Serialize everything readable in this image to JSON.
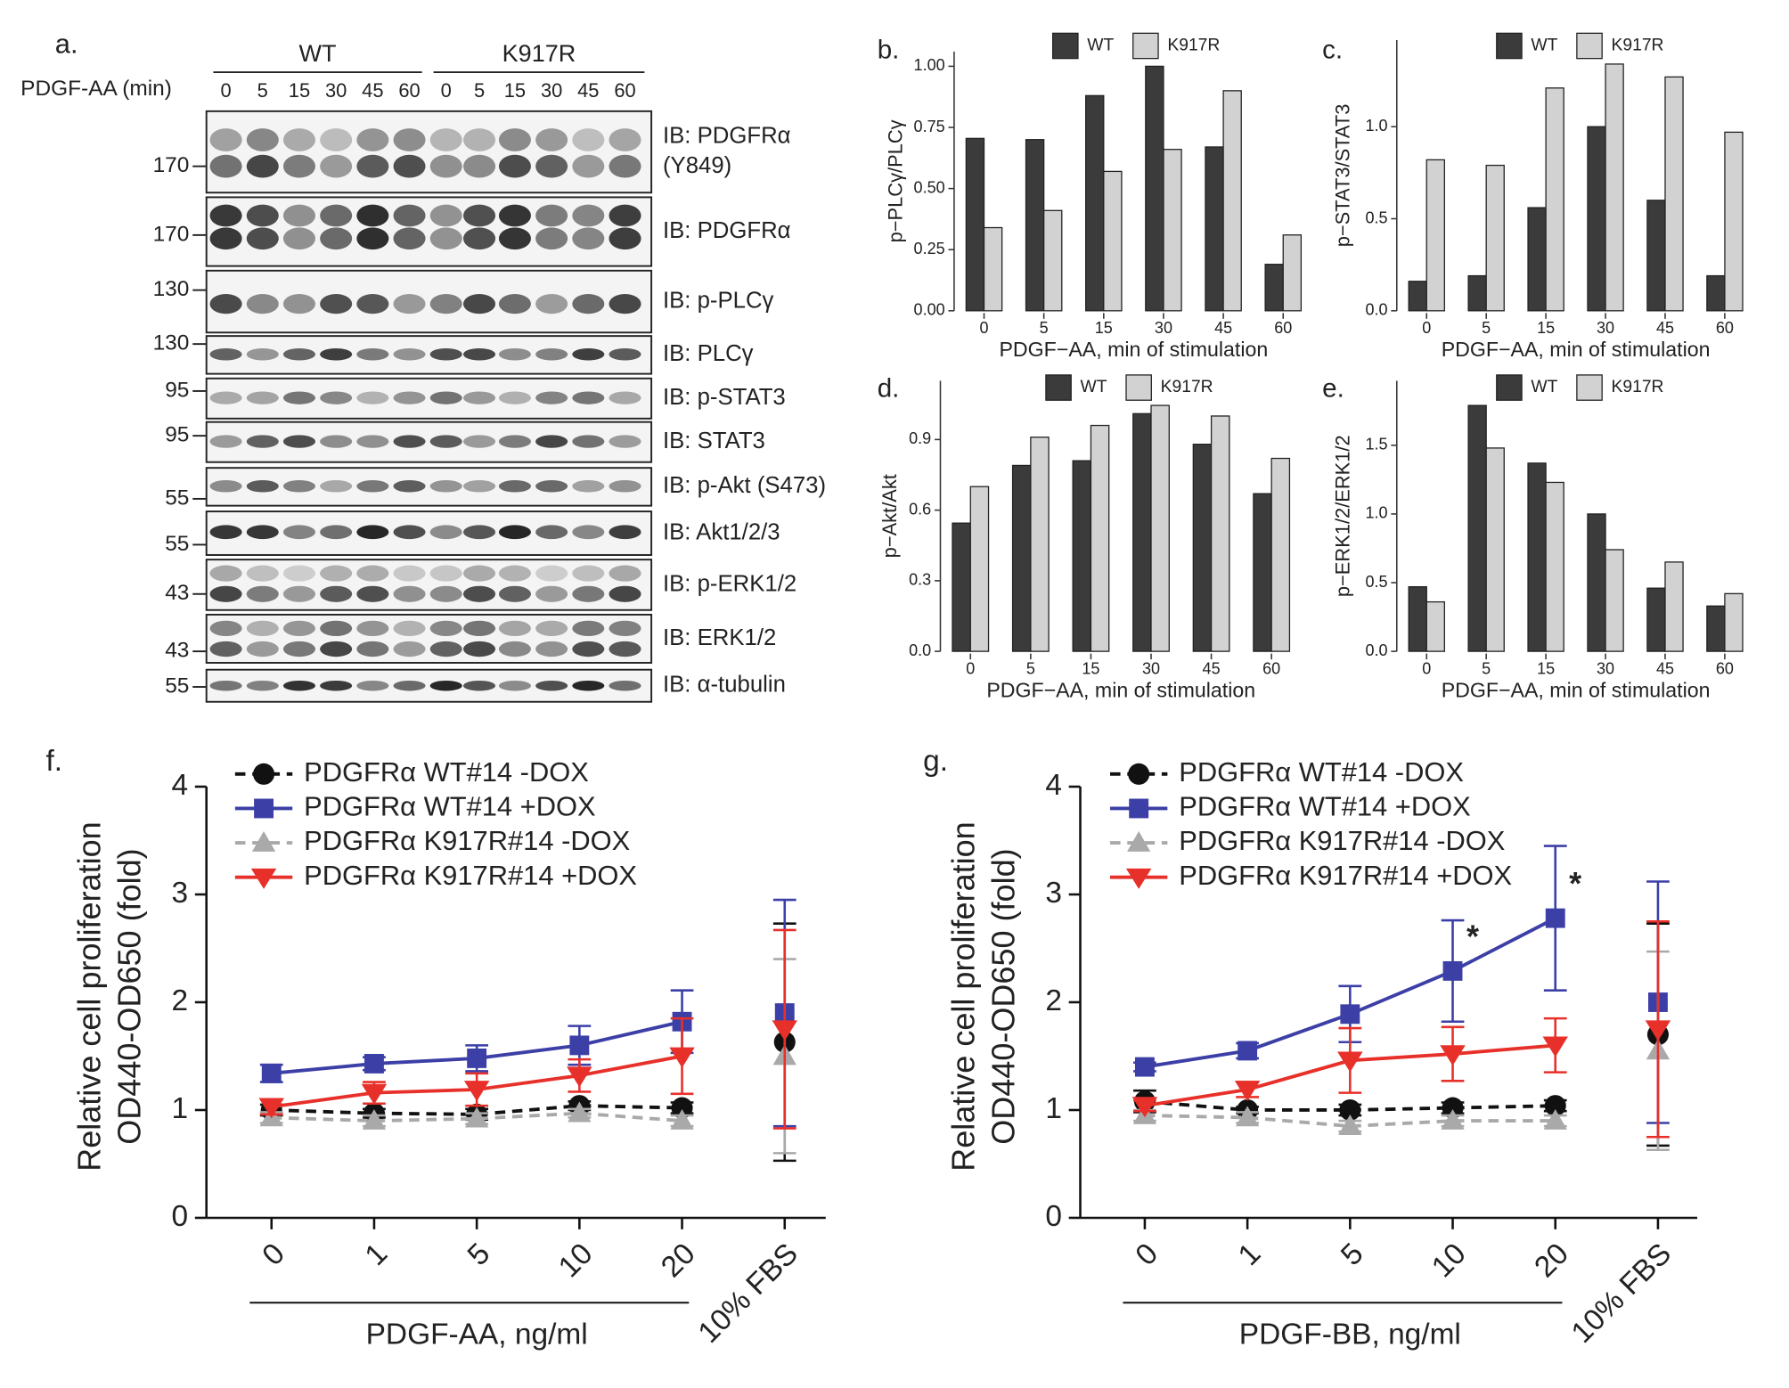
{
  "blot": {
    "panel_label": "a.",
    "treatment_label": "PDGF-AA (min)",
    "groups": [
      {
        "name": "WT",
        "lanes": [
          "0",
          "5",
          "15",
          "30",
          "45",
          "60"
        ]
      },
      {
        "name": "K917R",
        "lanes": [
          "0",
          "5",
          "15",
          "30",
          "45",
          "60"
        ]
      }
    ],
    "rows": [
      {
        "mw": "170",
        "label": [
          "IB: PDGFRα",
          "(Y849)"
        ]
      },
      {
        "mw": "170",
        "label": [
          "IB: PDGFRα"
        ]
      },
      {
        "mw": "130",
        "label": [
          "IB: p-PLCγ"
        ]
      },
      {
        "mw": "130",
        "label": [
          "IB: PLCγ"
        ]
      },
      {
        "mw": "95",
        "label": [
          "IB: p-STAT3"
        ]
      },
      {
        "mw": "95",
        "label": [
          "IB: STAT3"
        ]
      },
      {
        "mw": "55",
        "label": [
          "IB: p-Akt (S473)"
        ]
      },
      {
        "mw": "55",
        "label": [
          "IB: Akt1/2/3"
        ]
      },
      {
        "mw": "43",
        "label": [
          "IB: p-ERK1/2"
        ]
      },
      {
        "mw": "43",
        "label": [
          "IB: ERK1/2"
        ]
      },
      {
        "mw": "55",
        "label": [
          "IB: α-tubulin"
        ]
      }
    ]
  },
  "chart_data": [
    {
      "type": "bar",
      "panel_label": "b.",
      "ylabel": "p−PLCγ/PLCγ",
      "xlabel": "PDGF−AA, min of stimulation",
      "categories": [
        "0",
        "5",
        "15",
        "30",
        "45",
        "60"
      ],
      "series": [
        {
          "name": "WT",
          "color": "#3b3b3b",
          "values": [
            0.705,
            0.7,
            0.88,
            1.0,
            0.67,
            0.19
          ]
        },
        {
          "name": "K917R",
          "color": "#d2d2d2",
          "values": [
            0.34,
            0.41,
            0.57,
            0.66,
            0.9,
            0.31
          ]
        }
      ],
      "ylim": [
        0,
        1.06
      ],
      "yticks": [
        {
          "value": 0,
          "label": "0.00"
        },
        {
          "value": 0.25,
          "label": "0.25"
        },
        {
          "value": 0.5,
          "label": "0.50"
        },
        {
          "value": 0.75,
          "label": "0.75"
        },
        {
          "value": 1,
          "label": "1.00"
        }
      ]
    },
    {
      "type": "bar",
      "panel_label": "c.",
      "ylabel": "p−STAT3/STAT3",
      "xlabel": "PDGF−AA, min of stimulation",
      "categories": [
        "0",
        "5",
        "15",
        "30",
        "45",
        "60"
      ],
      "series": [
        {
          "name": "WT",
          "color": "#3b3b3b",
          "values": [
            0.16,
            0.19,
            0.56,
            1.0,
            0.6,
            0.19
          ]
        },
        {
          "name": "K917R",
          "color": "#d2d2d2",
          "values": [
            0.82,
            0.79,
            1.21,
            1.34,
            1.27,
            0.97
          ]
        }
      ],
      "ylim": [
        0,
        1.47
      ],
      "yticks": [
        {
          "value": 0,
          "label": "0.0"
        },
        {
          "value": 0.5,
          "label": "0.5"
        },
        {
          "value": 1,
          "label": "1.0"
        }
      ]
    },
    {
      "type": "bar",
      "panel_label": "d.",
      "ylabel": "p−Akt/Akt",
      "xlabel": "PDGF−AA, min of stimulation",
      "categories": [
        "0",
        "5",
        "15",
        "30",
        "45",
        "60"
      ],
      "series": [
        {
          "name": "WT",
          "color": "#3b3b3b",
          "values": [
            0.545,
            0.79,
            0.81,
            1.01,
            0.88,
            0.67
          ]
        },
        {
          "name": "K917R",
          "color": "#d2d2d2",
          "values": [
            0.7,
            0.91,
            0.96,
            1.045,
            1.0,
            0.82
          ]
        }
      ],
      "ylim": [
        0,
        1.15
      ],
      "yticks": [
        {
          "value": 0,
          "label": "0.0"
        },
        {
          "value": 0.3,
          "label": "0.3"
        },
        {
          "value": 0.6,
          "label": "0.6"
        },
        {
          "value": 0.9,
          "label": "0.9"
        }
      ]
    },
    {
      "type": "bar",
      "panel_label": "e.",
      "ylabel": "p−ERK1/2/ERK1/2",
      "xlabel": "PDGF−AA, min of stimulation",
      "categories": [
        "0",
        "5",
        "15",
        "30",
        "45",
        "60"
      ],
      "series": [
        {
          "name": "WT",
          "color": "#3b3b3b",
          "values": [
            0.47,
            1.79,
            1.37,
            1.0,
            0.46,
            0.33
          ]
        },
        {
          "name": "K917R",
          "color": "#d2d2d2",
          "values": [
            0.36,
            1.48,
            1.23,
            0.74,
            0.65,
            0.42
          ]
        }
      ],
      "ylim": [
        0,
        1.97
      ],
      "yticks": [
        {
          "value": 0,
          "label": "0.0"
        },
        {
          "value": 0.5,
          "label": "0.5"
        },
        {
          "value": 1,
          "label": "1.0"
        },
        {
          "value": 1.5,
          "label": "1.5"
        }
      ]
    },
    {
      "type": "line",
      "panel_label": "f.",
      "ylabel": [
        "Relative cell proliferation",
        "OD440-OD650 (fold)"
      ],
      "xlabel": "PDGF-AA, ng/ml",
      "categories": [
        "0",
        "1",
        "5",
        "10",
        "20"
      ],
      "fbs_label": "10% FBS",
      "series": [
        {
          "name": "PDGFRα WT#14 -DOX",
          "color": "#111111",
          "marker": "circle",
          "dashed": true,
          "values": [
            1.0,
            0.97,
            0.96,
            1.04,
            1.02
          ],
          "errors": [
            0.05,
            0.04,
            0.05,
            0.04,
            0.05
          ],
          "fbs": {
            "value": 1.63,
            "error": 1.1
          }
        },
        {
          "name": "PDGFRα WT#14 +DOX",
          "color": "#3b3fa6",
          "marker": "square",
          "dashed": false,
          "values": [
            1.34,
            1.43,
            1.48,
            1.6,
            1.82
          ],
          "errors": [
            0.08,
            0.06,
            0.12,
            0.18,
            0.29
          ],
          "fbs": {
            "value": 1.9,
            "error": 1.05
          }
        },
        {
          "name": "PDGFRα K917R#14 -DOX",
          "color": "#a9a9a9",
          "marker": "triangle-up",
          "dashed": true,
          "values": [
            0.93,
            0.9,
            0.92,
            0.97,
            0.9
          ],
          "errors": [
            0.05,
            0.05,
            0.05,
            0.04,
            0.05
          ],
          "fbs": {
            "value": 1.5,
            "error": 0.9
          }
        },
        {
          "name": "PDGFRα K917R#14 +DOX",
          "color": "#e8302a",
          "marker": "triangle-down",
          "dashed": false,
          "values": [
            1.03,
            1.16,
            1.19,
            1.32,
            1.5
          ],
          "errors": [
            0.07,
            0.1,
            0.15,
            0.15,
            0.35
          ],
          "fbs": {
            "value": 1.75,
            "error": 0.92
          }
        }
      ],
      "ylim": [
        0,
        4
      ],
      "yticks": [
        0,
        1,
        2,
        3,
        4
      ],
      "legend": "upper left"
    },
    {
      "type": "line",
      "panel_label": "g.",
      "ylabel": [
        "Relative cell proliferation",
        "OD440-OD650 (fold)"
      ],
      "xlabel": "PDGF-BB, ng/ml",
      "categories": [
        "0",
        "1",
        "5",
        "10",
        "20"
      ],
      "fbs_label": "10% FBS",
      "series": [
        {
          "name": "PDGFRα WT#14 -DOX",
          "color": "#111111",
          "marker": "circle",
          "dashed": true,
          "values": [
            1.08,
            1.0,
            1.0,
            1.02,
            1.04
          ],
          "errors": [
            0.1,
            0.03,
            0.05,
            0.05,
            0.05
          ],
          "fbs": {
            "value": 1.7,
            "error": 1.03
          }
        },
        {
          "name": "PDGFRα WT#14 +DOX",
          "color": "#3b3fa6",
          "marker": "square",
          "dashed": false,
          "values": [
            1.4,
            1.55,
            1.89,
            2.29,
            2.78
          ],
          "errors": [
            0.04,
            0.07,
            0.26,
            0.47,
            0.67
          ],
          "fbs": {
            "value": 2.0,
            "error": 1.12
          }
        },
        {
          "name": "PDGFRα K917R#14 -DOX",
          "color": "#a9a9a9",
          "marker": "triangle-up",
          "dashed": true,
          "values": [
            0.95,
            0.93,
            0.85,
            0.9,
            0.9
          ],
          "errors": [
            0.05,
            0.05,
            0.05,
            0.05,
            0.05
          ],
          "fbs": {
            "value": 1.55,
            "error": 0.92
          }
        },
        {
          "name": "PDGFRα K917R#14 +DOX",
          "color": "#e8302a",
          "marker": "triangle-down",
          "dashed": false,
          "values": [
            1.04,
            1.19,
            1.46,
            1.52,
            1.6
          ],
          "errors": [
            0.05,
            0.07,
            0.3,
            0.25,
            0.25
          ],
          "fbs": {
            "value": 1.75,
            "error": 1.0
          }
        }
      ],
      "ylim": [
        0,
        4
      ],
      "yticks": [
        0,
        1,
        2,
        3,
        4
      ],
      "legend": "upper left",
      "annotations": [
        "*",
        "*"
      ]
    }
  ]
}
